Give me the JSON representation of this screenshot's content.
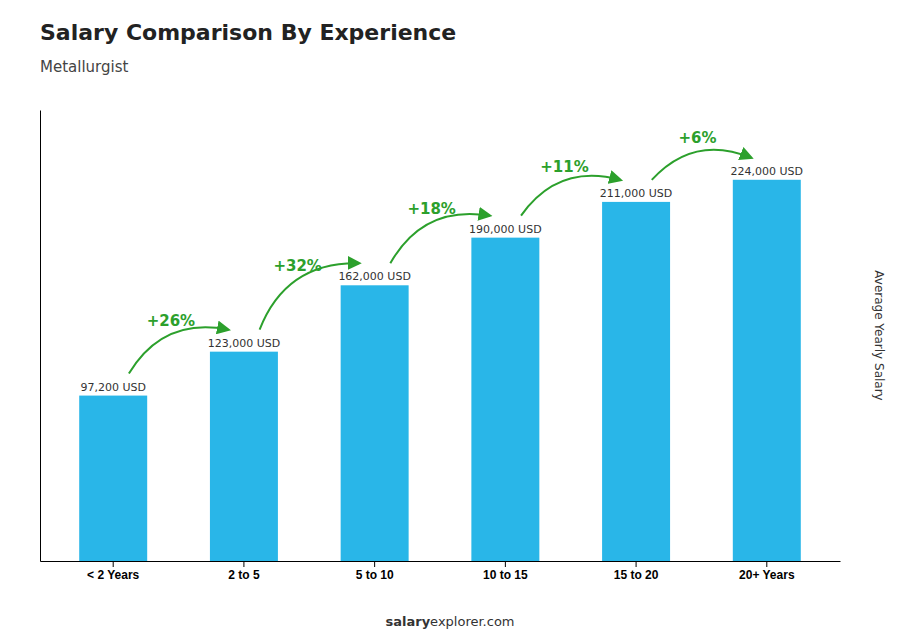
{
  "chart_data": {
    "type": "bar",
    "title": "Salary Comparison By Experience",
    "subtitle": "Metallurgist",
    "ylabel": "Average Yearly Salary",
    "categories": [
      "< 2 Years",
      "2 to 5",
      "5 to 10",
      "10 to 15",
      "15 to 20",
      "20+ Years"
    ],
    "values": [
      97200,
      123000,
      162000,
      190000,
      211000,
      224000
    ],
    "value_labels": [
      "97,200 USD",
      "123,000 USD",
      "162,000 USD",
      "190,000 USD",
      "211,000 USD",
      "224,000 USD"
    ],
    "data_labels": true,
    "annotations": [
      "+26%",
      "+32%",
      "+18%",
      "+11%",
      "+6%"
    ],
    "footer": [
      "salary",
      "explorer.com"
    ],
    "color": "#29b6e8",
    "ylim": [
      0,
      265000
    ],
    "tick_labels": "x",
    "grid": false
  }
}
